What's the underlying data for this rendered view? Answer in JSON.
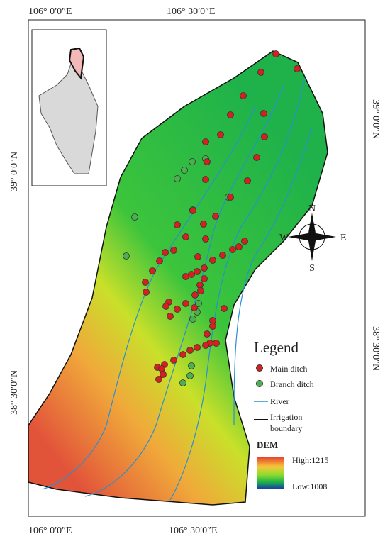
{
  "axes": {
    "top": [
      "106° 0′0″E",
      "106° 30′0″E"
    ],
    "bottom": [
      "106° 0′0″E",
      "106° 30′0″E"
    ],
    "left": [
      "39° 0′0″N",
      "38° 30′0″N"
    ],
    "right": [
      "39° 0′0″N",
      "38° 30′0″N"
    ]
  },
  "compass": {
    "north": "N",
    "south": "S",
    "east": "E",
    "west": "W"
  },
  "legend": {
    "title": "Legend",
    "main_ditch": "Main ditch",
    "branch_ditch": "Branch ditch",
    "river": "River",
    "boundary_line1": "Irrigation",
    "boundary_line2": "boundary",
    "dem_title": "DEM",
    "dem_high": "High:1215",
    "dem_low": "Low:1008"
  }
}
